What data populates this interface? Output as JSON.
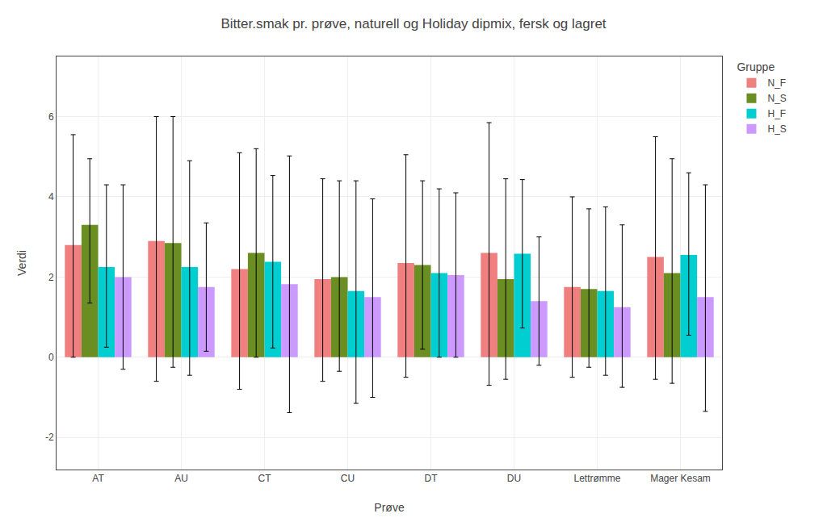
{
  "chart_data": {
    "type": "bar",
    "title": "Bitter.smak pr. prøve, naturell og Holiday dipmix, fersk og lagret",
    "xlabel": "Prøve",
    "ylabel": "Verdi",
    "legend_title": "Gruppe",
    "legend": "right",
    "grid": true,
    "categories": [
      "AT",
      "AU",
      "CT",
      "CU",
      "DT",
      "DU",
      "Lettrømme",
      "Mager Kesam"
    ],
    "series": [
      {
        "name": "N_F",
        "color": "#F08080",
        "values": [
          2.8,
          2.9,
          2.2,
          1.95,
          2.35,
          2.6,
          1.75,
          2.5
        ],
        "err_up": [
          2.75,
          3.1,
          2.9,
          2.5,
          2.7,
          3.25,
          2.25,
          3.0
        ],
        "err_lo": [
          2.8,
          3.5,
          3.0,
          2.55,
          2.85,
          3.3,
          2.25,
          3.05
        ]
      },
      {
        "name": "N_S",
        "color": "#6B8E23",
        "values": [
          3.3,
          2.85,
          2.6,
          2.0,
          2.3,
          1.95,
          1.7,
          2.1
        ],
        "err_up": [
          1.65,
          3.15,
          2.6,
          2.4,
          2.1,
          2.5,
          2.0,
          2.85
        ],
        "err_lo": [
          1.95,
          3.1,
          2.6,
          2.35,
          2.1,
          2.5,
          1.95,
          2.75
        ]
      },
      {
        "name": "H_F",
        "color": "#00CED1",
        "values": [
          2.25,
          2.25,
          2.38,
          1.65,
          2.1,
          2.58,
          1.65,
          2.55
        ],
        "err_up": [
          2.05,
          2.65,
          2.15,
          2.75,
          2.1,
          1.85,
          2.1,
          2.05
        ],
        "err_lo": [
          2.0,
          2.7,
          2.15,
          2.8,
          2.1,
          1.85,
          2.1,
          2.0
        ]
      },
      {
        "name": "H_S",
        "color": "#CC99FF",
        "values": [
          2.0,
          1.75,
          1.82,
          1.5,
          2.05,
          1.4,
          1.25,
          1.5
        ],
        "err_up": [
          2.3,
          1.6,
          3.2,
          2.45,
          2.05,
          1.6,
          2.05,
          2.8
        ],
        "err_lo": [
          2.3,
          1.6,
          3.2,
          2.5,
          2.05,
          1.6,
          2.0,
          2.85
        ]
      }
    ],
    "ylim": [
      -2.8,
      7.5
    ],
    "yticks": [
      -2,
      0,
      2,
      4,
      6
    ]
  }
}
